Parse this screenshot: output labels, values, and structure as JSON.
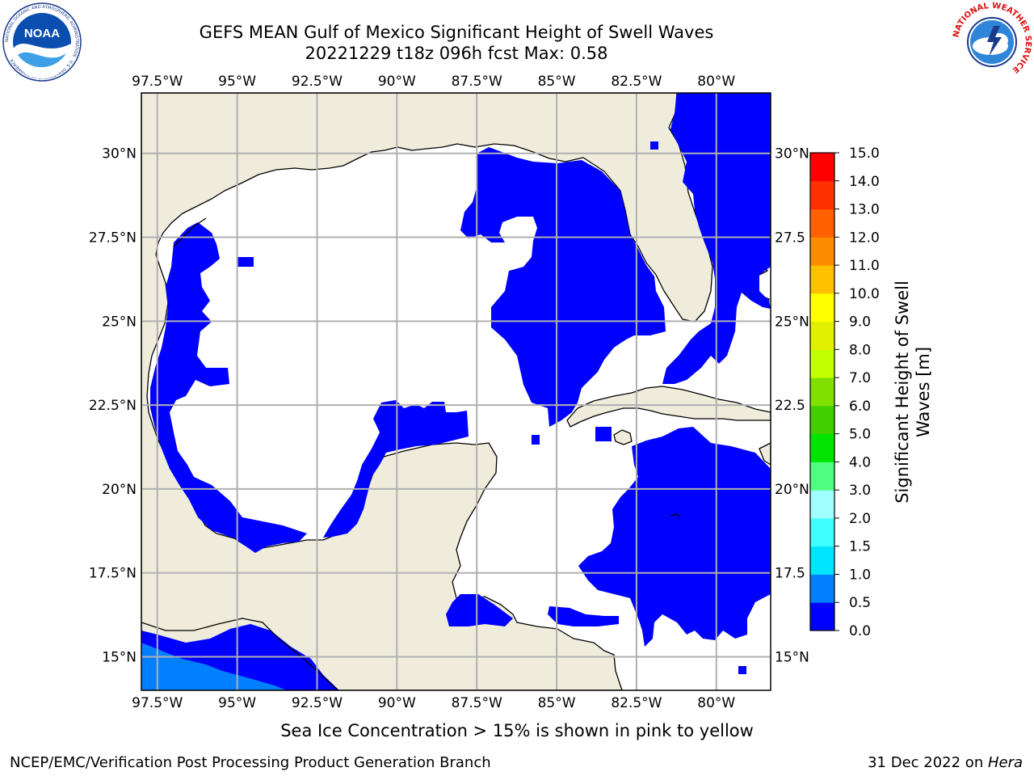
{
  "header": {
    "title_line1": "GEFS MEAN Gulf of Mexico Significant Height of Swell Waves",
    "title_line2": "20221229 t18z 096h fcst   Max: 0.58"
  },
  "logos": {
    "left": "NOAA",
    "left_ring_text": "NATIONAL OCEANIC AND ATMOSPHERIC ADMINISTRATION · U.S. DEPARTMENT OF COMMERCE",
    "right_ring_text": "NATIONAL WEATHER SERVICE"
  },
  "map": {
    "lon_labels": [
      "97.5°W",
      "95°W",
      "92.5°W",
      "90°W",
      "87.5°W",
      "85°W",
      "82.5°W",
      "80°W"
    ],
    "lon_values": [
      -97.5,
      -95,
      -92.5,
      -90,
      -87.5,
      -85,
      -82.5,
      -80
    ],
    "lat_labels": [
      "30°N",
      "27.5°N",
      "25°N",
      "22.5°N",
      "20°N",
      "17.5°N",
      "15°N"
    ],
    "lat_values": [
      30,
      27.5,
      25,
      22.5,
      20,
      17.5,
      15
    ],
    "right_lat_labels": [
      "30°N",
      "27.5",
      "25°N",
      "22.5",
      "20°N",
      "17.5",
      "15°N"
    ],
    "lon_range": [
      -98,
      -78.3
    ],
    "lat_range": [
      14,
      31.8
    ],
    "colors": {
      "land": "#efecdc",
      "ocean": "#ffffff",
      "swell_0_05": "#0000ff",
      "swell_05_10": "#0080ff",
      "grid": "#b0b0b0"
    }
  },
  "colorbar": {
    "label": "Significant Height of Swell Waves [m]",
    "tick_labels": [
      "0.0",
      "0.5",
      "1.0",
      "1.5",
      "2.0",
      "3.0",
      "4.0",
      "5.0",
      "6.0",
      "7.0",
      "8.0",
      "9.0",
      "10.0",
      "11.0",
      "12.0",
      "13.0",
      "14.0",
      "15.0"
    ],
    "colors": [
      "#0000ff",
      "#0080ff",
      "#00e5ff",
      "#40ffff",
      "#a0ffff",
      "#50ff80",
      "#00e400",
      "#40d000",
      "#80e000",
      "#c0ff00",
      "#e0f000",
      "#ffff00",
      "#ffc000",
      "#ff8c00",
      "#ff6000",
      "#ff3000",
      "#ff0000"
    ]
  },
  "footer": {
    "ice_note": "Sea Ice Concentration > 15% is shown in pink to yellow",
    "credit_left": "NCEP/EMC/Verification Post Processing Product Generation Branch",
    "credit_date": "31 Dec 2022 on ",
    "credit_host": "Hera"
  }
}
